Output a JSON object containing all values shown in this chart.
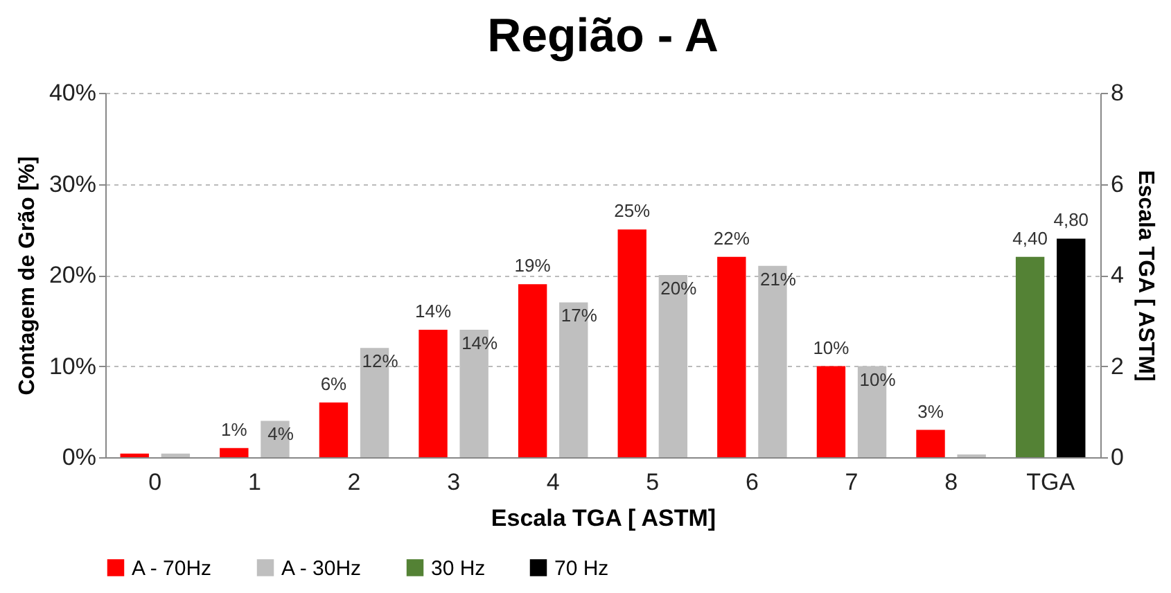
{
  "chart_data": {
    "type": "bar",
    "title": "Região  - A",
    "xlabel": "Escala TGA [ ASTM]",
    "ylabel": "Contagem de Grão [%]",
    "y2label": "Escala TGA [ ASTM]",
    "categories": [
      "0",
      "1",
      "2",
      "3",
      "4",
      "5",
      "6",
      "7",
      "8",
      "TGA"
    ],
    "series": [
      {
        "name": "A - 70Hz",
        "color": "#ff0000",
        "values": [
          0.4,
          1,
          6,
          14,
          19,
          25,
          22,
          10,
          3,
          null
        ],
        "value_labels": [
          null,
          "1%",
          "6%",
          "14%",
          "19%",
          "25%",
          "22%",
          "10%",
          "3%",
          null
        ]
      },
      {
        "name": "A - 30Hz",
        "color": "#bfbfbf",
        "values": [
          0.4,
          4,
          12,
          14,
          17,
          20,
          21,
          10,
          0.3,
          null
        ],
        "value_labels": [
          null,
          "4%",
          "12%",
          "14%",
          "17%",
          "20%",
          "21%",
          "10%",
          null,
          null
        ]
      },
      {
        "name": "30 Hz",
        "color": "#548235",
        "axis": "y2",
        "values": [
          null,
          null,
          null,
          null,
          null,
          null,
          null,
          null,
          null,
          4.4
        ],
        "value_labels": [
          null,
          null,
          null,
          null,
          null,
          null,
          null,
          null,
          null,
          "4,40"
        ]
      },
      {
        "name": "70 Hz",
        "color": "#000000",
        "axis": "y2",
        "values": [
          null,
          null,
          null,
          null,
          null,
          null,
          null,
          null,
          null,
          4.8
        ],
        "value_labels": [
          null,
          null,
          null,
          null,
          null,
          null,
          null,
          null,
          null,
          "4,80"
        ]
      }
    ],
    "ylim": [
      0,
      40
    ],
    "yticks": [
      {
        "value": 0,
        "label": "0%"
      },
      {
        "value": 10,
        "label": "10%"
      },
      {
        "value": 20,
        "label": "20%"
      },
      {
        "value": 30,
        "label": "30%"
      },
      {
        "value": 40,
        "label": "40%"
      }
    ],
    "y2lim": [
      0,
      8
    ],
    "y2ticks": [
      0,
      2,
      4,
      6,
      8
    ],
    "grid": "y",
    "legend": "bottom"
  }
}
